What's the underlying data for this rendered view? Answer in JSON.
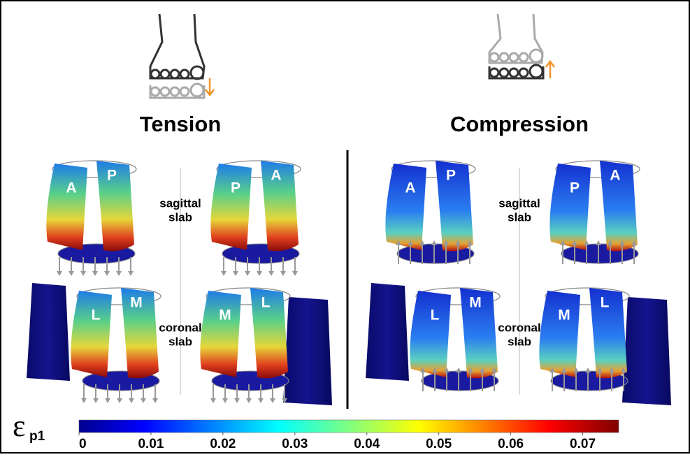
{
  "panels": [
    {
      "title": "Tension",
      "views": [
        {
          "labels": [
            "A",
            "P"
          ]
        },
        {
          "labels": [
            "P",
            "A"
          ]
        },
        {
          "labels": [
            "L",
            "M"
          ]
        },
        {
          "labels": [
            "M",
            "L"
          ]
        }
      ],
      "sagittal": [
        "sagittal",
        "slab"
      ],
      "coronal": [
        "coronal",
        "slab"
      ]
    },
    {
      "title": "Compression",
      "views": [
        {
          "labels": [
            "A",
            "P"
          ]
        },
        {
          "labels": [
            "P",
            "A"
          ]
        },
        {
          "labels": [
            "L",
            "M"
          ]
        },
        {
          "labels": [
            "M",
            "L"
          ]
        }
      ],
      "sagittal": [
        "sagittal",
        "slab"
      ],
      "coronal": [
        "coronal",
        "slab"
      ]
    }
  ],
  "colorbar": {
    "symbol": "ε",
    "subscript": "p1",
    "range": [
      0,
      0.075
    ],
    "ticks": [
      0,
      0.01,
      0.02,
      0.03,
      0.04,
      0.05,
      0.06,
      0.07
    ]
  }
}
